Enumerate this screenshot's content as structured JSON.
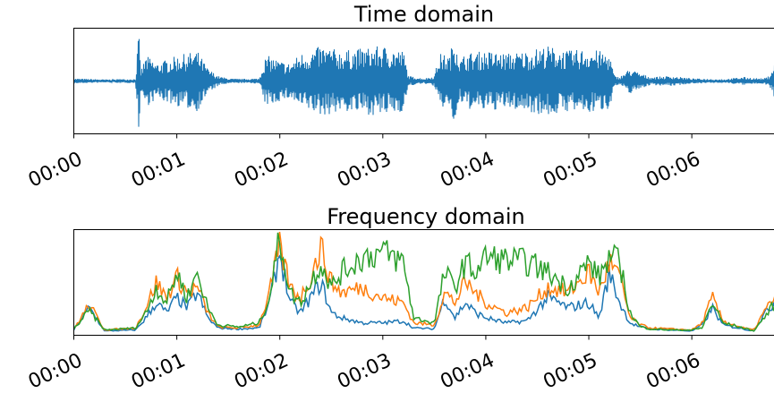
{
  "chart_data": [
    {
      "type": "line",
      "title": "Time domain",
      "xlabel": "",
      "ylabel": "",
      "x_ticks": [
        "00:00",
        "00:01",
        "00:02",
        "00:03",
        "00:04",
        "00:05",
        "00:06"
      ],
      "xlim_seconds": [
        0,
        6.95
      ],
      "ylim": [
        -1,
        1
      ],
      "y_ticks_visible": false,
      "grid": false,
      "series": [
        {
          "color": "#1f77b4",
          "envelope": {
            "t": [
              0.0,
              0.3,
              0.6,
              0.63,
              0.65,
              0.7,
              0.75,
              0.8,
              1.0,
              1.2,
              1.3,
              1.4,
              1.5,
              1.6,
              1.8,
              1.85,
              1.9,
              2.0,
              2.1,
              2.2,
              2.3,
              2.4,
              2.5,
              2.6,
              2.8,
              3.0,
              3.1,
              3.2,
              3.25,
              3.4,
              3.5,
              3.55,
              3.65,
              3.7,
              3.75,
              3.8,
              4.0,
              4.2,
              4.4,
              4.6,
              4.8,
              5.0,
              5.2,
              5.25,
              5.3,
              5.4,
              5.5,
              5.6,
              5.8,
              6.0,
              6.2,
              6.3,
              6.5,
              6.6,
              6.7,
              6.75,
              6.8,
              6.95
            ],
            "amplitude": [
              0.05,
              0.03,
              0.04,
              1.0,
              0.2,
              0.5,
              0.45,
              0.35,
              0.5,
              0.6,
              0.25,
              0.1,
              0.05,
              0.04,
              0.05,
              0.45,
              0.5,
              0.4,
              0.35,
              0.55,
              0.6,
              0.7,
              0.65,
              0.6,
              0.65,
              0.7,
              0.65,
              0.6,
              0.1,
              0.05,
              0.1,
              0.55,
              0.5,
              1.0,
              0.4,
              0.55,
              0.6,
              0.55,
              0.6,
              0.7,
              0.6,
              0.65,
              0.55,
              0.1,
              0.08,
              0.25,
              0.15,
              0.08,
              0.1,
              0.05,
              0.04,
              0.03,
              0.08,
              0.06,
              0.05,
              0.1,
              0.35,
              0.45
            ]
          }
        }
      ]
    },
    {
      "type": "line",
      "title": "Frequency domain",
      "xlabel": "",
      "ylabel": "",
      "x_ticks": [
        "00:00",
        "00:01",
        "00:02",
        "00:03",
        "00:04",
        "00:05",
        "00:06"
      ],
      "xlim_seconds": [
        0,
        6.95
      ],
      "ylim": [
        0,
        1
      ],
      "y_ticks_visible": false,
      "grid": false,
      "series": [
        {
          "color": "#1f77b4",
          "t": [
            0.0,
            0.15,
            0.3,
            0.6,
            0.7,
            0.8,
            0.9,
            1.0,
            1.1,
            1.2,
            1.3,
            1.4,
            1.6,
            1.8,
            1.9,
            2.0,
            2.1,
            2.2,
            2.3,
            2.4,
            2.5,
            2.6,
            2.8,
            3.0,
            3.2,
            3.3,
            3.5,
            3.6,
            3.7,
            3.8,
            3.9,
            4.0,
            4.2,
            4.4,
            4.6,
            4.8,
            5.0,
            5.1,
            5.2,
            5.3,
            5.4,
            5.5,
            5.6,
            5.8,
            6.0,
            6.1,
            6.2,
            6.3,
            6.5,
            6.6,
            6.7,
            6.8,
            6.9,
            6.95
          ],
          "values": [
            0.03,
            0.25,
            0.02,
            0.03,
            0.15,
            0.3,
            0.2,
            0.35,
            0.25,
            0.4,
            0.15,
            0.05,
            0.04,
            0.05,
            0.3,
            0.8,
            0.3,
            0.2,
            0.35,
            0.5,
            0.2,
            0.15,
            0.1,
            0.1,
            0.12,
            0.05,
            0.04,
            0.35,
            0.15,
            0.3,
            0.2,
            0.15,
            0.1,
            0.12,
            0.35,
            0.25,
            0.3,
            0.15,
            0.6,
            0.3,
            0.1,
            0.06,
            0.04,
            0.03,
            0.02,
            0.08,
            0.25,
            0.08,
            0.04,
            0.02,
            0.18,
            0.3,
            0.18,
            0.6
          ]
        },
        {
          "color": "#ff7f0e",
          "t": [
            0.0,
            0.15,
            0.3,
            0.6,
            0.7,
            0.8,
            0.9,
            1.0,
            1.1,
            1.2,
            1.3,
            1.4,
            1.6,
            1.8,
            1.9,
            2.0,
            2.1,
            2.2,
            2.3,
            2.4,
            2.5,
            2.6,
            2.8,
            3.0,
            3.2,
            3.3,
            3.5,
            3.6,
            3.7,
            3.8,
            3.9,
            4.0,
            4.2,
            4.4,
            4.6,
            4.8,
            5.0,
            5.1,
            5.2,
            5.3,
            5.4,
            5.5,
            5.6,
            5.8,
            6.0,
            6.1,
            6.2,
            6.3,
            6.5,
            6.6,
            6.7,
            6.8,
            6.9,
            6.95
          ],
          "values": [
            0.04,
            0.28,
            0.03,
            0.05,
            0.25,
            0.5,
            0.35,
            0.55,
            0.4,
            0.45,
            0.2,
            0.06,
            0.05,
            0.08,
            0.4,
            0.85,
            0.45,
            0.35,
            0.55,
            0.85,
            0.5,
            0.4,
            0.45,
            0.35,
            0.3,
            0.1,
            0.08,
            0.4,
            0.3,
            0.5,
            0.4,
            0.3,
            0.2,
            0.25,
            0.45,
            0.4,
            0.6,
            0.4,
            0.7,
            0.55,
            0.15,
            0.08,
            0.05,
            0.04,
            0.03,
            0.1,
            0.35,
            0.12,
            0.05,
            0.03,
            0.2,
            0.35,
            0.2,
            0.75
          ]
        },
        {
          "color": "#2ca02c",
          "t": [
            0.0,
            0.15,
            0.3,
            0.6,
            0.7,
            0.8,
            0.9,
            1.0,
            1.1,
            1.2,
            1.3,
            1.4,
            1.6,
            1.8,
            1.9,
            2.0,
            2.1,
            2.2,
            2.3,
            2.4,
            2.5,
            2.6,
            2.8,
            3.0,
            3.2,
            3.3,
            3.5,
            3.6,
            3.7,
            3.8,
            3.9,
            4.0,
            4.2,
            4.4,
            4.6,
            4.8,
            5.0,
            5.1,
            5.2,
            5.3,
            5.4,
            5.5,
            5.6,
            5.8,
            6.0,
            6.1,
            6.2,
            6.3,
            6.5,
            6.6,
            6.7,
            6.8,
            6.9,
            6.95
          ],
          "values": [
            0.04,
            0.22,
            0.03,
            0.05,
            0.2,
            0.45,
            0.3,
            0.6,
            0.35,
            0.6,
            0.25,
            0.08,
            0.06,
            0.1,
            0.35,
            0.95,
            0.4,
            0.3,
            0.5,
            0.7,
            0.45,
            0.6,
            0.75,
            0.8,
            0.7,
            0.15,
            0.1,
            0.6,
            0.45,
            0.7,
            0.6,
            0.75,
            0.72,
            0.7,
            0.6,
            0.45,
            0.7,
            0.55,
            0.75,
            0.7,
            0.2,
            0.06,
            0.04,
            0.03,
            0.03,
            0.05,
            0.3,
            0.1,
            0.05,
            0.02,
            0.15,
            0.28,
            0.15,
            0.5
          ]
        }
      ]
    }
  ]
}
